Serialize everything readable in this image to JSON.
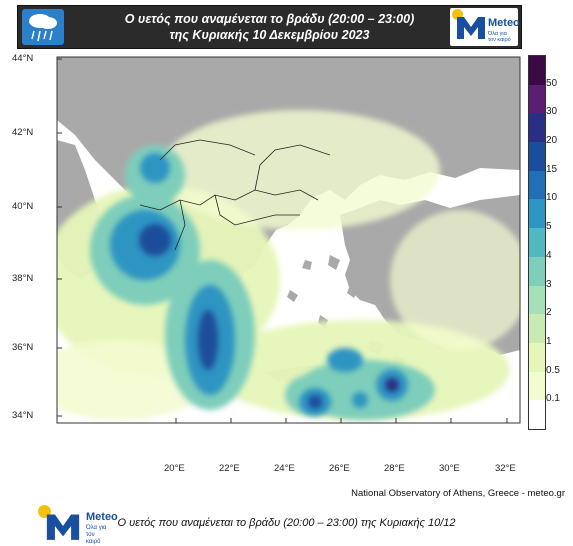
{
  "header": {
    "title_line1": "Ο υετός που αναμένεται το βράδυ (20:00 – 23:00)",
    "title_line2": "της Κυριακής 10 Δεκεμβρίου 2023",
    "weather_icon": "rain-cloud-icon",
    "logo_text": "Meteo",
    "logo_sub_line1": "Όλα για",
    "logo_sub_line2": "τον καιρό"
  },
  "map": {
    "lat_labels": [
      "44°N",
      "42°N",
      "40°N",
      "38°N",
      "36°N",
      "34°N"
    ],
    "lon_labels": [
      "20°E",
      "22°E",
      "24°E",
      "26°E",
      "28°E",
      "30°E",
      "32°E"
    ],
    "colors": {
      "sea": "#ffffff",
      "land": "#a8a8a8",
      "border": "#222222"
    }
  },
  "legend": {
    "levels": [
      "0.1",
      "0.5",
      "1",
      "2",
      "3",
      "4",
      "5",
      "10",
      "15",
      "20",
      "30",
      "50"
    ],
    "colors": [
      "#ffffff",
      "#f3fbd0",
      "#e6f5b8",
      "#c8ebb5",
      "#a6dfb8",
      "#7ecebb",
      "#52b8c0",
      "#2e94c2",
      "#2170b5",
      "#1b4e9a",
      "#2a2f85",
      "#5a1e72",
      "#3a0a45"
    ]
  },
  "bottom_logo": {
    "text": "Meteo",
    "sub_line1": "Όλα για",
    "sub_line2": "τον καιρό"
  },
  "credit": "National Observatory of Athens, Greece - meteo.gr",
  "caption": "Ο υετός που αναμένεται το βράδυ (20:00 – 23:00) της Κυριακής 10/12"
}
